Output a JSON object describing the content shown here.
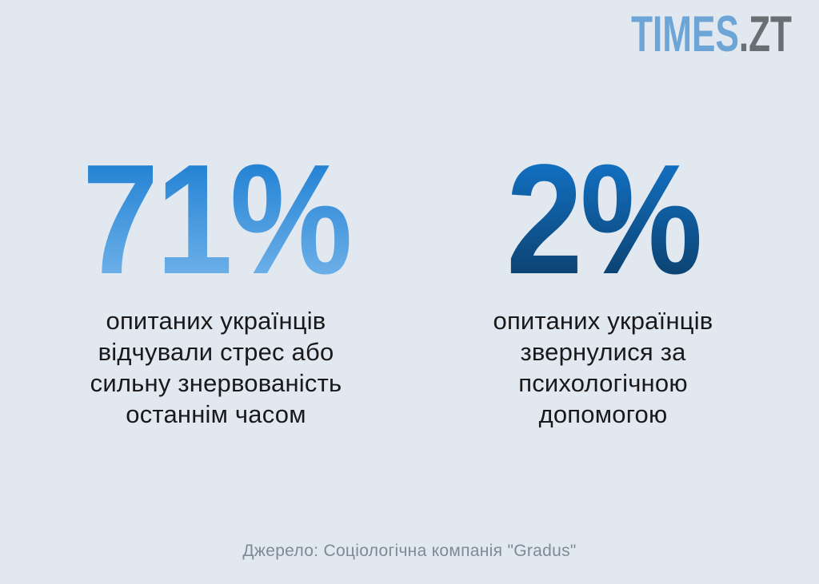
{
  "logo": {
    "times": "TIMES",
    "zt": ".ZT"
  },
  "stats": [
    {
      "value": "71%",
      "lines": [
        "опитаних українців",
        "відчували стрес або",
        "сильну знервованість",
        "останнім часом"
      ],
      "gradient_top": "#2181d3",
      "gradient_bottom": "#6fb1e9"
    },
    {
      "value": "2%",
      "lines": [
        "опитаних українців",
        "звернулися за",
        "психологічною",
        "допомогою"
      ],
      "gradient_top": "#1271c3",
      "gradient_bottom": "#0c4170"
    }
  ],
  "source": "Джерело: Соціологічна компанія \"Gradus\"",
  "colors": {
    "background": "#e2e8ef",
    "body_text": "#19191b",
    "source_text": "#7d8a98",
    "logo_blue": "#6ea5d7",
    "logo_gray": "#696e72"
  },
  "chart_data": {
    "type": "table",
    "title": "",
    "categories": [
      "опитаних українців відчували стрес або сильну знервованість останнім часом",
      "опитаних українців звернулися за психологічною допомогою"
    ],
    "values": [
      71,
      2
    ],
    "unit": "%",
    "legend_position": "none",
    "source": "Джерело: Соціологічна компанія \"Gradus\""
  }
}
